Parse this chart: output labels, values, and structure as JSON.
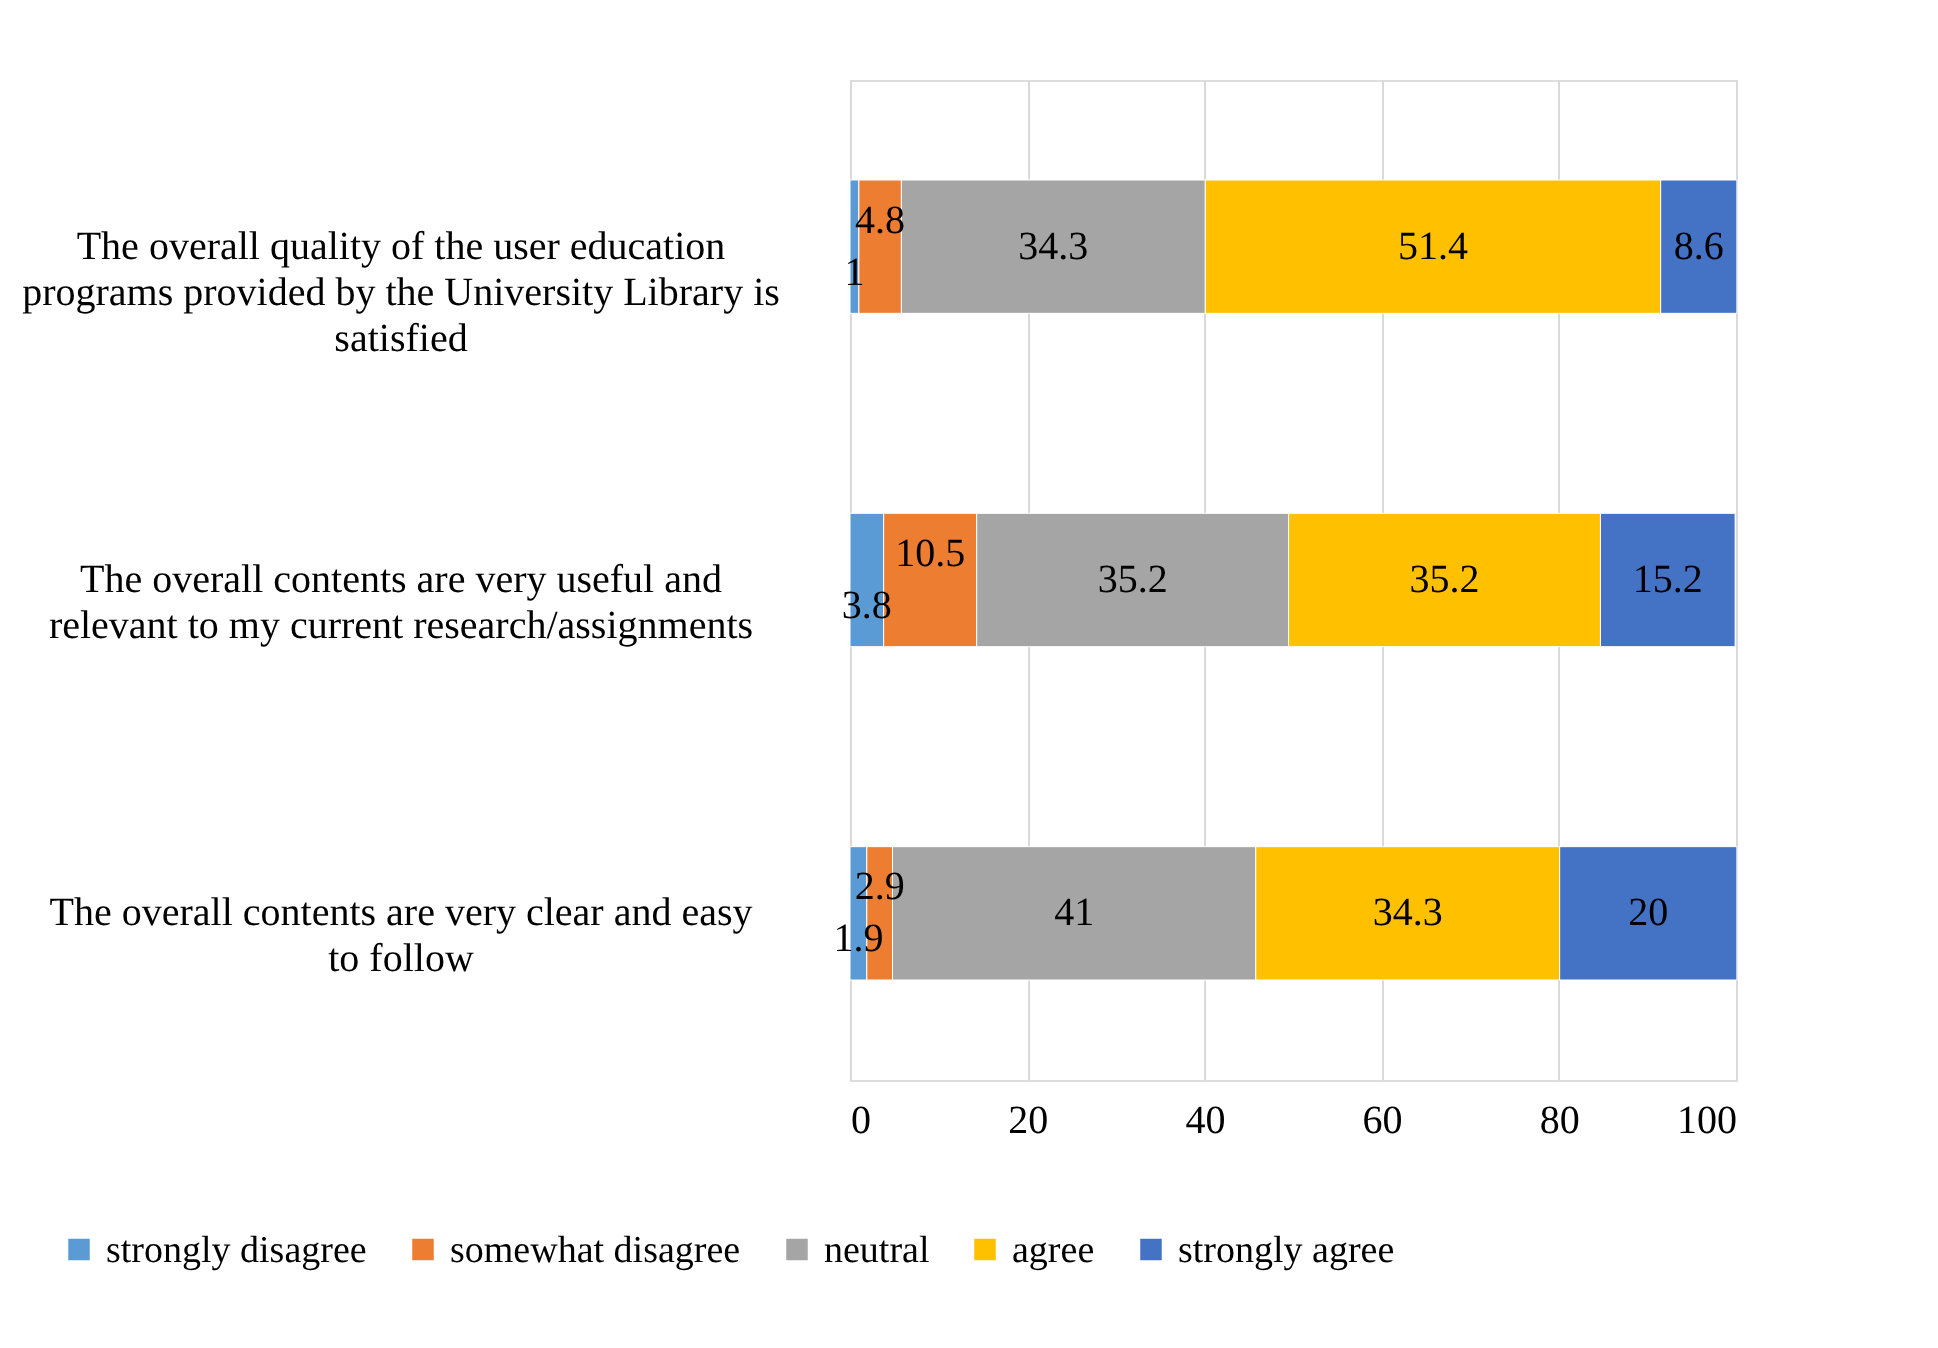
{
  "chart_data": {
    "type": "bar",
    "orientation": "horizontal",
    "stacked": true,
    "categories": [
      "The overall quality of the user education programs provided by the University Library is satisfied",
      "The overall contents are very useful and relevant to my current research/assignments",
      "The overall contents are very clear and easy to follow"
    ],
    "series": [
      {
        "name": "strongly disagree",
        "color": "#5b9bd5",
        "values": [
          1,
          3.8,
          1.9
        ]
      },
      {
        "name": "somewhat disagree",
        "color": "#ed7d31",
        "values": [
          4.8,
          10.5,
          2.9
        ]
      },
      {
        "name": "neutral",
        "color": "#a5a5a5",
        "values": [
          34.3,
          35.2,
          41
        ]
      },
      {
        "name": "agree",
        "color": "#ffc000",
        "values": [
          51.4,
          35.2,
          34.3
        ]
      },
      {
        "name": "strongly agree",
        "color": "#4472c4",
        "values": [
          8.6,
          15.2,
          20
        ]
      }
    ],
    "xlim": [
      0,
      100
    ],
    "xticks": [
      0,
      20,
      40,
      60,
      80,
      100
    ],
    "grid": "x",
    "legend": "bottom",
    "data_labels": true
  }
}
